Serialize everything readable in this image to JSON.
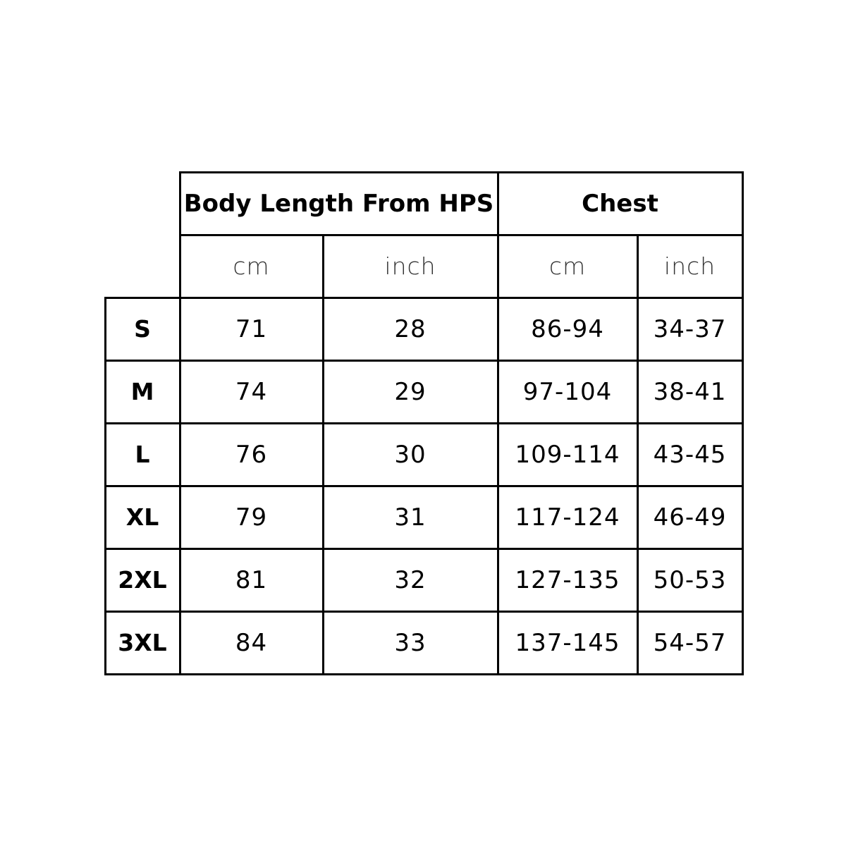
{
  "table": {
    "group_headers": [
      "Body Length From HPS",
      "Chest"
    ],
    "unit_headers": [
      "cm",
      "inch",
      "cm",
      "inch"
    ],
    "rows": [
      {
        "size": "S",
        "values": [
          "71",
          "28",
          "86-94",
          "34-37"
        ]
      },
      {
        "size": "M",
        "values": [
          "74",
          "29",
          "97-104",
          "38-41"
        ]
      },
      {
        "size": "L",
        "values": [
          "76",
          "30",
          "109-114",
          "43-45"
        ]
      },
      {
        "size": "XL",
        "values": [
          "79",
          "31",
          "117-124",
          "46-49"
        ]
      },
      {
        "size": "2XL",
        "values": [
          "81",
          "32",
          "127-135",
          "50-53"
        ]
      },
      {
        "size": "3XL",
        "values": [
          "84",
          "33",
          "137-145",
          "54-57"
        ]
      }
    ]
  }
}
